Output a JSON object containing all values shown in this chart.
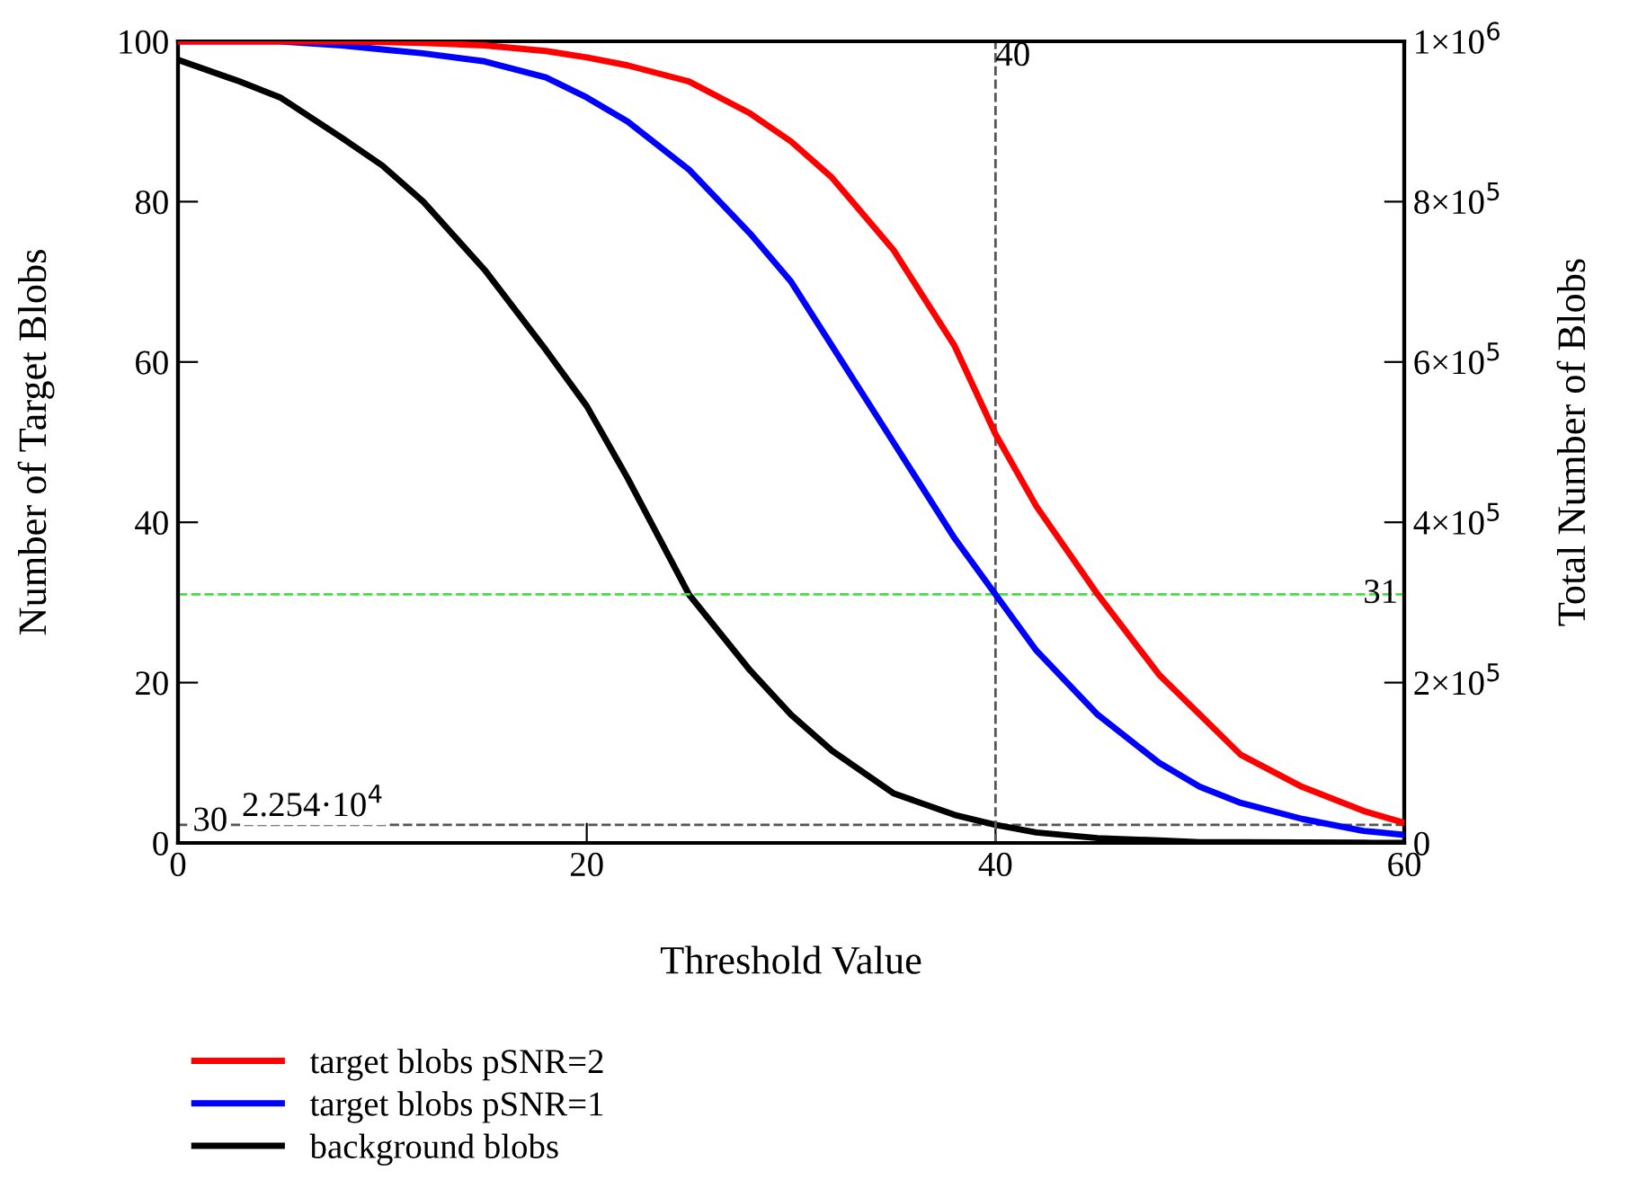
{
  "chart_data": {
    "type": "line",
    "xlabel": "Threshold Value",
    "ylabel": "Number of Target Blobs",
    "y2label": "Total Number of Blobs",
    "x": [
      0,
      3,
      5,
      8,
      10,
      12,
      15,
      18,
      20,
      22,
      25,
      28,
      30,
      32,
      35,
      38,
      40,
      42,
      45,
      48,
      50,
      52,
      55,
      58,
      60
    ],
    "series": [
      {
        "name": "target blobs pSNR=2",
        "color": "#ff0000",
        "values": [
          100,
          100,
          100,
          100,
          99.9,
          99.8,
          99.5,
          98.8,
          98,
          97,
          95,
          91,
          87.5,
          83,
          74,
          62,
          51,
          42,
          31,
          21,
          16,
          11,
          7,
          4,
          2.5
        ]
      },
      {
        "name": "target blobs pSNR=1",
        "color": "#0000ff",
        "values": [
          100,
          100,
          100,
          99.5,
          99,
          98.5,
          97.5,
          95.5,
          93,
          90,
          84,
          76,
          70,
          62,
          50,
          38,
          31,
          24,
          16,
          10,
          7,
          5,
          3,
          1.5,
          1
        ]
      },
      {
        "name": "background blobs",
        "color": "#000000",
        "axis": "y2",
        "values": [
          977000,
          950000,
          930000,
          880000,
          845000,
          800000,
          715000,
          615000,
          545000,
          455000,
          310000,
          215000,
          160000,
          115000,
          62000,
          35000,
          22540,
          13000,
          6000,
          3000,
          1000,
          800,
          500,
          200,
          0
        ]
      }
    ],
    "xlim": [
      0,
      60
    ],
    "xticks": [
      0,
      20,
      40,
      60
    ],
    "ylim": [
      0,
      100
    ],
    "yticks": [
      0,
      20,
      40,
      60,
      80,
      100
    ],
    "y2lim": [
      0,
      1000000
    ],
    "y2ticks": [
      0,
      {
        "value": 200000,
        "label": "2×10$^{5}$"
      },
      {
        "value": 400000,
        "label": "4×10$^{5}$"
      },
      {
        "value": 600000,
        "label": "6×10$^{5}$"
      },
      {
        "value": 800000,
        "label": "8×10$^{5}$"
      },
      {
        "value": 1000000,
        "label": "1×10$^{6}$"
      }
    ],
    "ref_lines": [
      {
        "axis": "x",
        "value": 40,
        "label": "40",
        "color": "#555555",
        "line_style": "dashed"
      },
      {
        "axis": "y",
        "value": 31,
        "label": "31",
        "color": "#44dd44",
        "line_style": "dashed"
      },
      {
        "axis": "y2",
        "value": 22540,
        "color": "#555555",
        "line_style": "dashed"
      }
    ],
    "annotations": [
      "30",
      "2.254·10$^{4}$"
    ],
    "grid": false,
    "legend": "bottom left",
    "marker": "none",
    "line_style": "solid"
  }
}
